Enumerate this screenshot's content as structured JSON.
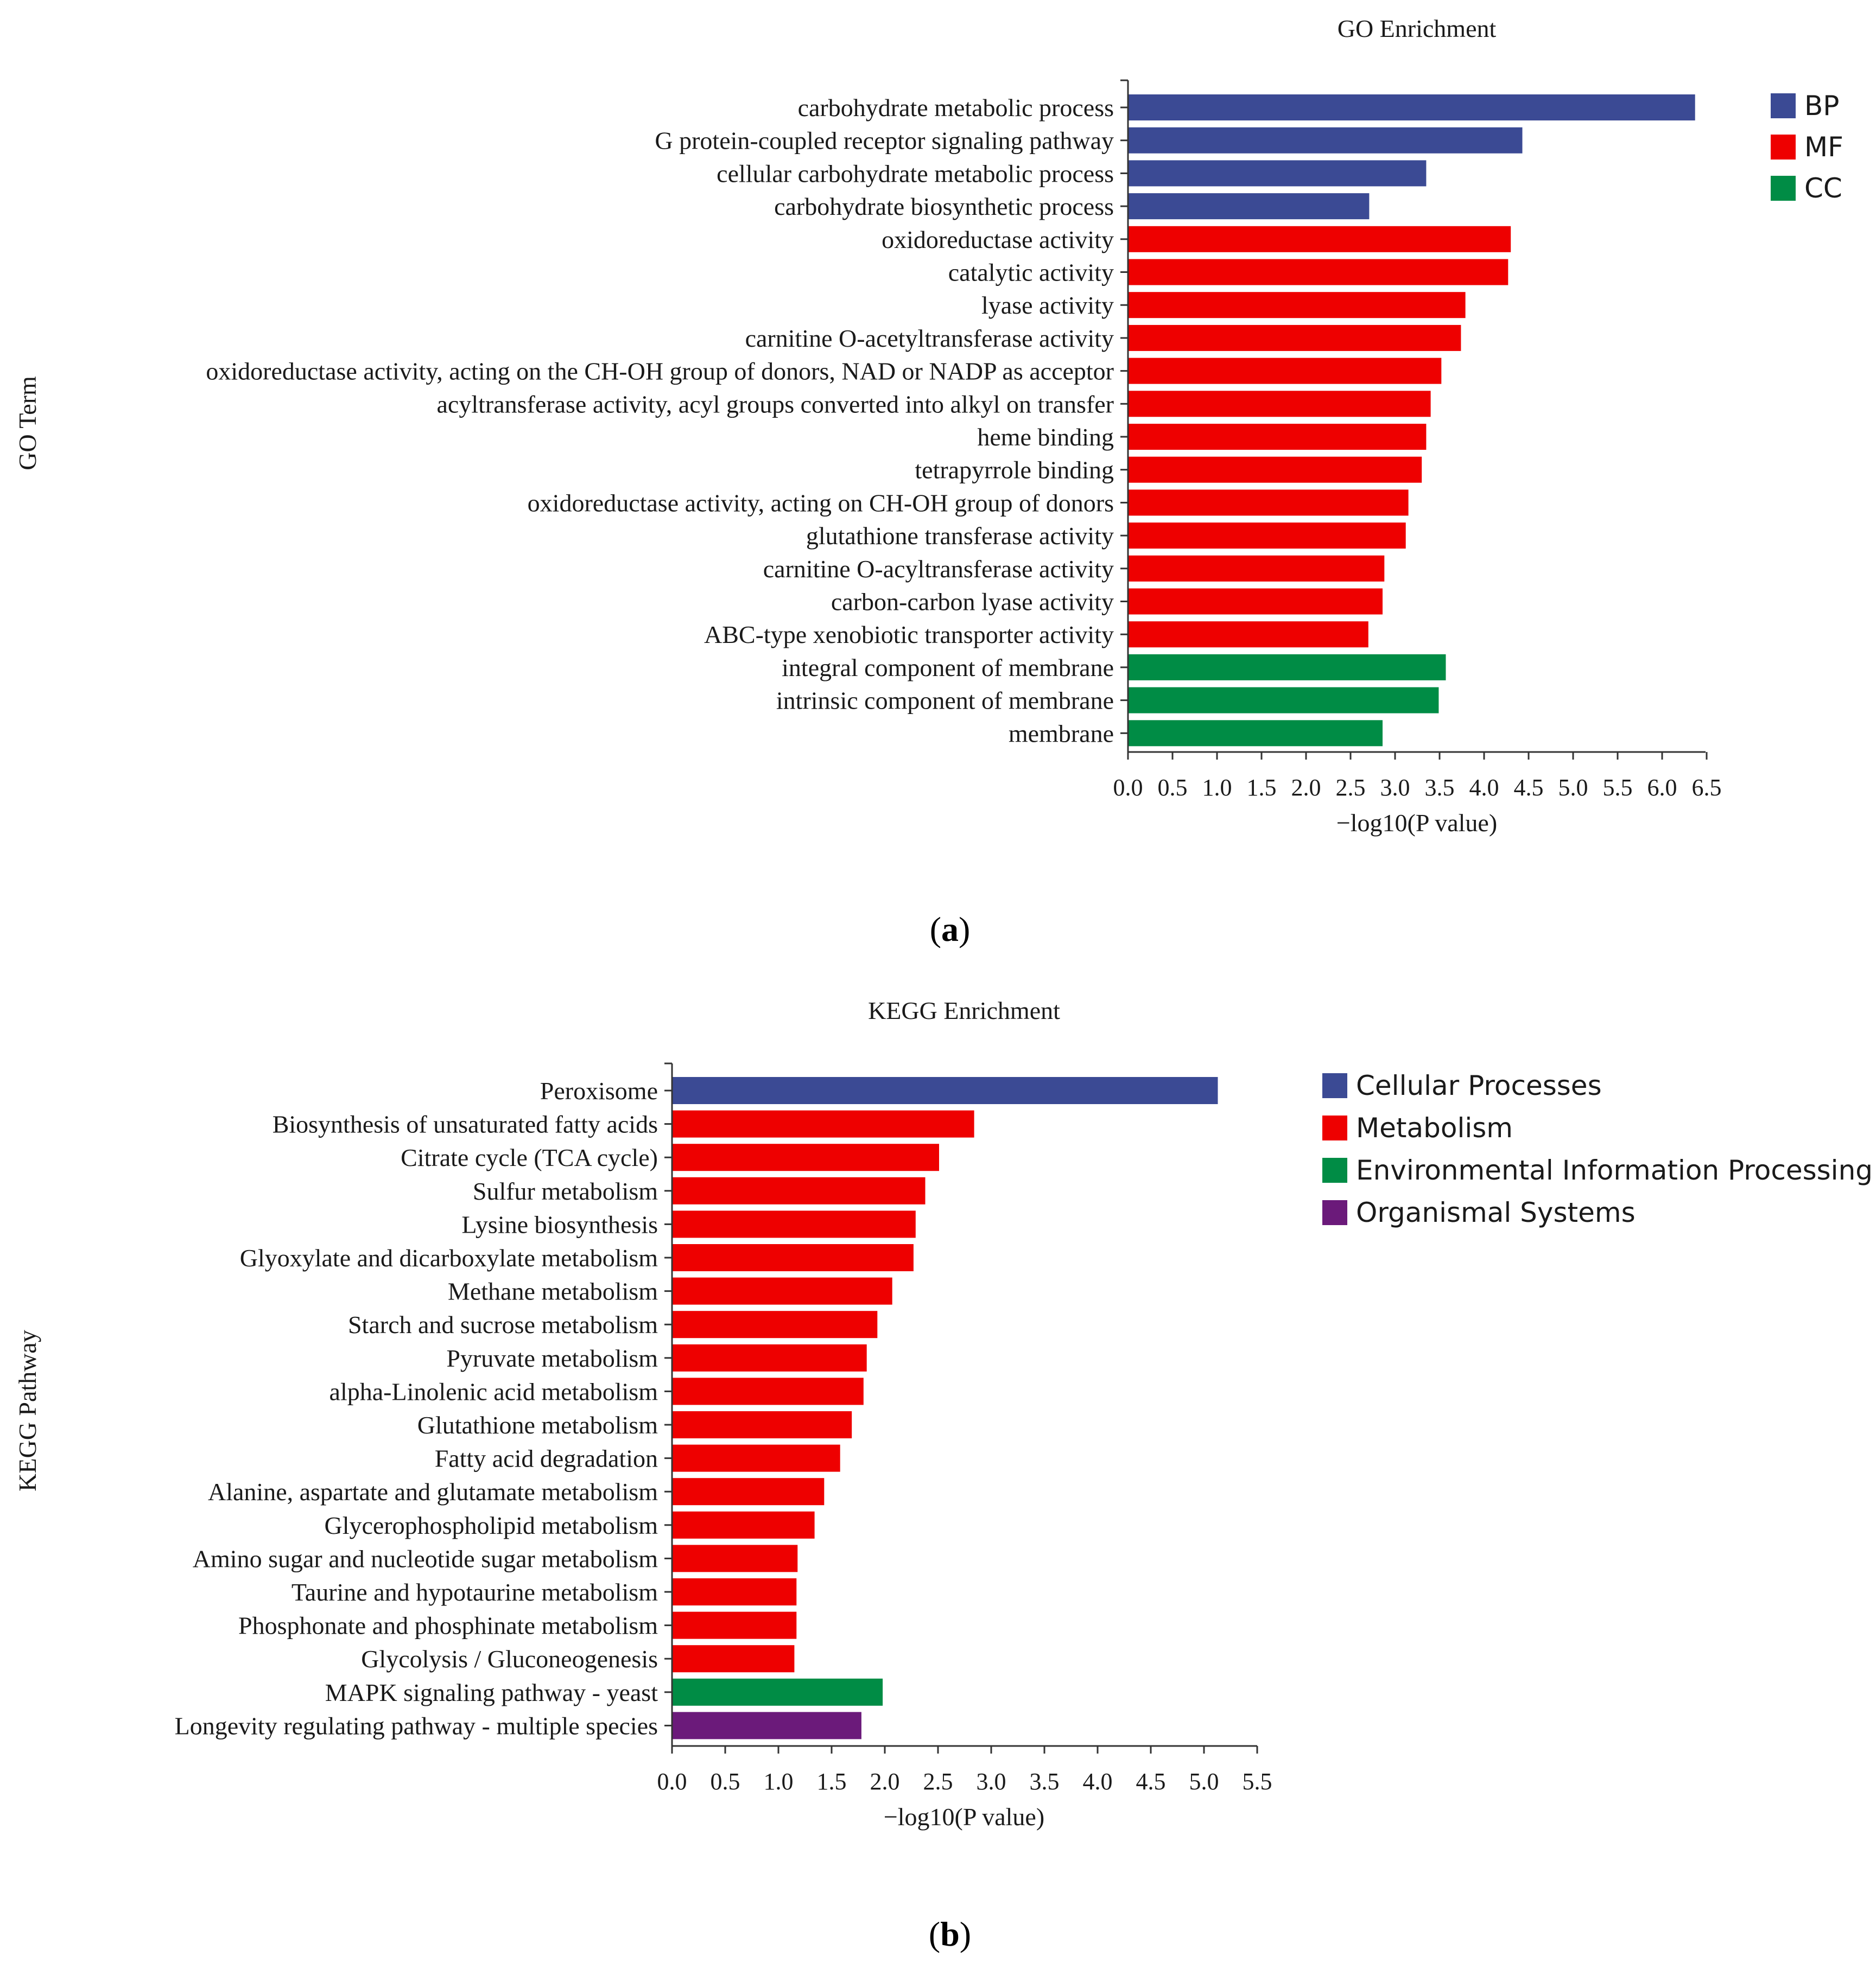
{
  "chart_data": [
    {
      "panel_label": "a",
      "type": "bar",
      "orientation": "horizontal",
      "title": "GO Enrichment",
      "xlabel": "−log10(P value)",
      "ylabel": "GO Term",
      "xlim": [
        0,
        6.5
      ],
      "xticks": [
        "0.0",
        "0.5",
        "1.0",
        "1.5",
        "2.0",
        "2.5",
        "3.0",
        "3.5",
        "4.0",
        "4.5",
        "5.0",
        "5.5",
        "6.0",
        "6.5"
      ],
      "legend": [
        {
          "name": "BP",
          "color": "#3b4a94"
        },
        {
          "name": "MF",
          "color": "#ee0000"
        },
        {
          "name": "CC",
          "color": "#008c45"
        }
      ],
      "bars": [
        {
          "label": "carbohydrate metabolic process",
          "value": 6.37,
          "group": "BP"
        },
        {
          "label": "G protein-coupled receptor signaling pathway",
          "value": 4.43,
          "group": "BP"
        },
        {
          "label": "cellular carbohydrate metabolic process",
          "value": 3.35,
          "group": "BP"
        },
        {
          "label": "carbohydrate biosynthetic process",
          "value": 2.71,
          "group": "BP"
        },
        {
          "label": "oxidoreductase activity",
          "value": 4.3,
          "group": "MF"
        },
        {
          "label": "catalytic activity",
          "value": 4.27,
          "group": "MF"
        },
        {
          "label": "lyase activity",
          "value": 3.79,
          "group": "MF"
        },
        {
          "label": "carnitine O-acetyltransferase activity",
          "value": 3.74,
          "group": "MF"
        },
        {
          "label": "oxidoreductase activity, acting on the CH-OH group of donors, NAD or NADP as acceptor",
          "value": 3.52,
          "group": "MF"
        },
        {
          "label": "acyltransferase activity, acyl groups converted into alkyl on transfer",
          "value": 3.4,
          "group": "MF"
        },
        {
          "label": "heme binding",
          "value": 3.35,
          "group": "MF"
        },
        {
          "label": "tetrapyrrole binding",
          "value": 3.3,
          "group": "MF"
        },
        {
          "label": "oxidoreductase activity, acting on CH-OH group of donors",
          "value": 3.15,
          "group": "MF"
        },
        {
          "label": "glutathione transferase activity",
          "value": 3.12,
          "group": "MF"
        },
        {
          "label": "carnitine O-acyltransferase activity",
          "value": 2.88,
          "group": "MF"
        },
        {
          "label": "carbon-carbon lyase activity",
          "value": 2.86,
          "group": "MF"
        },
        {
          "label": "ABC-type xenobiotic transporter activity",
          "value": 2.7,
          "group": "MF"
        },
        {
          "label": "integral component of membrane",
          "value": 3.57,
          "group": "CC"
        },
        {
          "label": "intrinsic component of membrane",
          "value": 3.49,
          "group": "CC"
        },
        {
          "label": "membrane",
          "value": 2.86,
          "group": "CC"
        }
      ]
    },
    {
      "panel_label": "b",
      "type": "bar",
      "orientation": "horizontal",
      "title": "KEGG Enrichment",
      "xlabel": "−log10(P value)",
      "ylabel": "KEGG Pathway",
      "xlim": [
        0,
        5.5
      ],
      "xticks": [
        "0.0",
        "0.5",
        "1.0",
        "1.5",
        "2.0",
        "2.5",
        "3.0",
        "3.5",
        "4.0",
        "4.5",
        "5.0",
        "5.5"
      ],
      "legend": [
        {
          "name": "Cellular Processes",
          "color": "#3b4a94"
        },
        {
          "name": "Metabolism",
          "color": "#ee0000"
        },
        {
          "name": "Environmental Information Processing",
          "color": "#008c45"
        },
        {
          "name": "Organismal Systems",
          "color": "#6b1a7a"
        }
      ],
      "bars": [
        {
          "label": "Peroxisome",
          "value": 5.13,
          "group": "Cellular Processes"
        },
        {
          "label": "Biosynthesis of unsaturated fatty acids",
          "value": 2.84,
          "group": "Metabolism"
        },
        {
          "label": "Citrate cycle (TCA cycle)",
          "value": 2.51,
          "group": "Metabolism"
        },
        {
          "label": "Sulfur metabolism",
          "value": 2.38,
          "group": "Metabolism"
        },
        {
          "label": "Lysine biosynthesis",
          "value": 2.29,
          "group": "Metabolism"
        },
        {
          "label": "Glyoxylate and dicarboxylate metabolism",
          "value": 2.27,
          "group": "Metabolism"
        },
        {
          "label": "Methane metabolism",
          "value": 2.07,
          "group": "Metabolism"
        },
        {
          "label": "Starch and sucrose metabolism",
          "value": 1.93,
          "group": "Metabolism"
        },
        {
          "label": "Pyruvate metabolism",
          "value": 1.83,
          "group": "Metabolism"
        },
        {
          "label": "alpha-Linolenic acid metabolism",
          "value": 1.8,
          "group": "Metabolism"
        },
        {
          "label": "Glutathione metabolism",
          "value": 1.69,
          "group": "Metabolism"
        },
        {
          "label": "Fatty acid degradation",
          "value": 1.58,
          "group": "Metabolism"
        },
        {
          "label": "Alanine, aspartate and glutamate metabolism",
          "value": 1.43,
          "group": "Metabolism"
        },
        {
          "label": "Glycerophospholipid metabolism",
          "value": 1.34,
          "group": "Metabolism"
        },
        {
          "label": "Amino sugar and nucleotide sugar metabolism",
          "value": 1.18,
          "group": "Metabolism"
        },
        {
          "label": "Taurine and hypotaurine metabolism",
          "value": 1.17,
          "group": "Metabolism"
        },
        {
          "label": "Phosphonate and phosphinate metabolism",
          "value": 1.17,
          "group": "Metabolism"
        },
        {
          "label": "Glycolysis / Gluconeogenesis",
          "value": 1.15,
          "group": "Metabolism"
        },
        {
          "label": "MAPK signaling pathway - yeast",
          "value": 1.98,
          "group": "Environmental Information Processing"
        },
        {
          "label": "Longevity regulating pathway - multiple species",
          "value": 1.78,
          "group": "Organismal Systems"
        }
      ]
    }
  ]
}
